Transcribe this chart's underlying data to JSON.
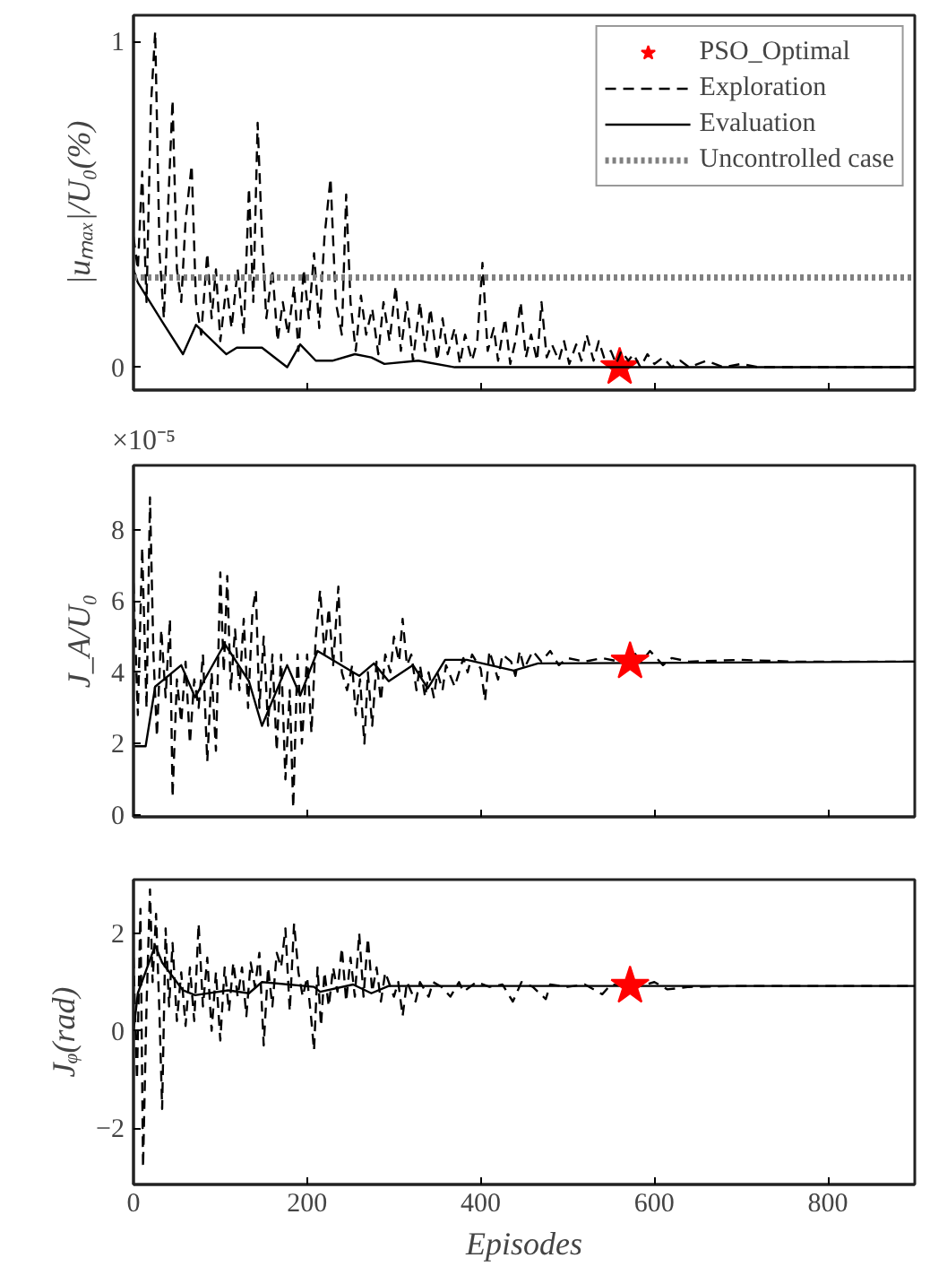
{
  "chart_data": [
    {
      "type": "line",
      "ylabel": "|uₘₐₓ|/U₀(%)",
      "xlim": [
        0,
        900
      ],
      "xticks": [
        0,
        200,
        400,
        600,
        800
      ],
      "ylim": [
        -0.07,
        1.08
      ],
      "yticks": [
        0,
        1
      ],
      "tick_labels": "y",
      "grid": false,
      "legend": "top right",
      "series": [
        {
          "name": "PSO_Optimal",
          "type": "scatter",
          "marker": "star",
          "color": "#ff0000",
          "x": [
            560
          ],
          "values": [
            0
          ]
        },
        {
          "name": "Exploration",
          "type": "line",
          "line_style": "dashed",
          "color": "#000000",
          "x": [
            0,
            5,
            10,
            15,
            20,
            25,
            30,
            35,
            40,
            45,
            50,
            55,
            60,
            67,
            72,
            78,
            85,
            90,
            95,
            100,
            107,
            113,
            120,
            127,
            133,
            138,
            143,
            148,
            153,
            160,
            166,
            172,
            178,
            185,
            190,
            196,
            202,
            208,
            214,
            220,
            227,
            233,
            240,
            245,
            250,
            256,
            262,
            268,
            275,
            282,
            288,
            295,
            302,
            308,
            315,
            322,
            330,
            336,
            342,
            350,
            356,
            362,
            370,
            376,
            382,
            390,
            396,
            402,
            408,
            415,
            420,
            428,
            434,
            440,
            446,
            452,
            458,
            465,
            470,
            476,
            482,
            490,
            496,
            502,
            510,
            516,
            522,
            530,
            536,
            542,
            550,
            556,
            562,
            570,
            576,
            584,
            592,
            600,
            610,
            620,
            630,
            640,
            660,
            680,
            700,
            720,
            760,
            800,
            850,
            900
          ],
          "values": [
            0.4,
            0.3,
            0.6,
            0.2,
            0.8,
            1.03,
            0.35,
            0.15,
            0.5,
            0.82,
            0.3,
            0.2,
            0.45,
            0.62,
            0.2,
            0.1,
            0.35,
            0.15,
            0.3,
            0.08,
            0.25,
            0.12,
            0.3,
            0.1,
            0.55,
            0.2,
            0.75,
            0.4,
            0.15,
            0.3,
            0.08,
            0.2,
            0.1,
            0.25,
            0.05,
            0.3,
            0.15,
            0.35,
            0.12,
            0.4,
            0.58,
            0.2,
            0.1,
            0.53,
            0.2,
            0.05,
            0.22,
            0.1,
            0.18,
            0.04,
            0.2,
            0.08,
            0.25,
            0.05,
            0.2,
            0.02,
            0.2,
            0.05,
            0.18,
            0.02,
            0.15,
            0.04,
            0.12,
            0.01,
            0.1,
            0.02,
            0.08,
            0.32,
            0.05,
            0.12,
            0.02,
            0.15,
            0.01,
            0.08,
            0.2,
            0.03,
            0.1,
            0.02,
            0.2,
            0.03,
            0.07,
            0.02,
            0.08,
            0.01,
            0.07,
            0.02,
            0.1,
            0.02,
            0.08,
            0.03,
            0.05,
            0.01,
            0.05,
            0.02,
            0.04,
            0.0,
            0.04,
            0.01,
            0.03,
            0.0,
            0.02,
            0.0,
            0.02,
            0.0,
            0.01,
            0.0,
            0.0,
            0.0,
            0.0,
            0.0
          ]
        },
        {
          "name": "Evaluation",
          "type": "line",
          "line_style": "solid",
          "color": "#000000",
          "x": [
            0,
            5,
            33,
            57,
            72,
            107,
            119,
            148,
            177,
            192,
            210,
            229,
            255,
            274,
            289,
            328,
            370,
            900
          ],
          "values": [
            0.3,
            0.26,
            0.14,
            0.04,
            0.13,
            0.04,
            0.06,
            0.06,
            0.0,
            0.07,
            0.02,
            0.02,
            0.04,
            0.03,
            0.01,
            0.02,
            0.0,
            0.0
          ]
        }
      ],
      "ref_lines": [
        {
          "axis": "y",
          "value": 0.275,
          "label": "Uncontrolled case",
          "color": "#808080",
          "line_style": "dotted"
        }
      ]
    },
    {
      "type": "line",
      "ylabel": "J_A/U₀",
      "annotations": [
        "×10⁻⁵"
      ],
      "xlim": [
        0,
        900
      ],
      "xticks": [
        0,
        200,
        400,
        600,
        800
      ],
      "ylim": [
        -0.05,
        9.8
      ],
      "yticks": [
        0,
        2,
        4,
        6,
        8
      ],
      "tick_labels": "y",
      "grid": false,
      "series": [
        {
          "type": "line",
          "line_style": "dashed",
          "color": "#000000",
          "x": [
            0,
            5,
            10,
            15,
            19,
            23,
            27,
            32,
            37,
            42,
            45,
            50,
            55,
            60,
            65,
            70,
            75,
            80,
            85,
            90,
            95,
            100,
            104,
            108,
            112,
            117,
            122,
            127,
            132,
            137,
            141,
            145,
            150,
            155,
            160,
            165,
            170,
            175,
            180,
            184,
            189,
            194,
            200,
            205,
            210,
            215,
            220,
            225,
            230,
            236,
            240,
            246,
            252,
            256,
            261,
            266,
            270,
            275,
            280,
            285,
            290,
            296,
            300,
            306,
            310,
            315,
            320,
            326,
            330,
            336,
            340,
            346,
            350,
            356,
            360,
            370,
            380,
            385,
            390,
            400,
            405,
            410,
            420,
            425,
            435,
            440,
            445,
            450,
            460,
            470,
            480,
            490,
            500,
            520,
            540,
            560,
            575,
            585,
            595,
            610,
            620,
            640,
            700,
            760,
            900
          ],
          "values": [
            6.5,
            2.8,
            7.5,
            3.0,
            8.9,
            4.5,
            2.2,
            5.2,
            3.3,
            5.5,
            0.5,
            3.8,
            2.6,
            4.3,
            2.0,
            3.8,
            3.0,
            4.5,
            1.5,
            4.0,
            1.8,
            6.8,
            4.0,
            6.7,
            3.5,
            5.2,
            3.5,
            5.5,
            3.0,
            5.7,
            6.3,
            3.0,
            5.0,
            2.5,
            4.5,
            1.8,
            4.5,
            1.0,
            3.5,
            0.2,
            4.5,
            2.0,
            4.5,
            2.3,
            5.0,
            6.3,
            4.5,
            5.8,
            4.2,
            6.4,
            4.0,
            3.5,
            4.2,
            2.8,
            3.8,
            2.0,
            4.0,
            2.5,
            4.3,
            3.2,
            4.5,
            4.0,
            5.0,
            4.3,
            5.5,
            4.2,
            4.5,
            3.5,
            4.2,
            3.3,
            4.0,
            3.3,
            4.0,
            3.5,
            4.2,
            3.6,
            4.4,
            4.0,
            4.5,
            4.1,
            3.2,
            4.6,
            3.8,
            4.5,
            4.3,
            3.9,
            4.6,
            4.1,
            4.6,
            4.3,
            4.6,
            4.2,
            4.4,
            4.3,
            4.4,
            4.3,
            4.6,
            4.3,
            4.6,
            4.2,
            4.4,
            4.3,
            4.35,
            4.3,
            4.3
          ]
        },
        {
          "type": "line",
          "line_style": "solid",
          "color": "#000000",
          "x": [
            0,
            14,
            25,
            55,
            71,
            82,
            105,
            133,
            148,
            177,
            192,
            212,
            260,
            277,
            294,
            322,
            339,
            359,
            384,
            438,
            466,
            900
          ],
          "values": [
            1.93,
            1.93,
            3.6,
            4.2,
            3.3,
            3.8,
            4.8,
            3.75,
            2.5,
            4.2,
            3.35,
            4.6,
            3.9,
            4.25,
            3.75,
            4.2,
            3.55,
            4.35,
            4.35,
            4.05,
            4.25,
            4.3
          ]
        },
        {
          "type": "scatter",
          "marker": "star",
          "color": "#ff0000",
          "x": [
            572
          ],
          "values": [
            4.3
          ]
        }
      ]
    },
    {
      "type": "line",
      "ylabel": "Jᵩ(rad)",
      "xlabel": "Episodes",
      "xlim": [
        0,
        900
      ],
      "xticks": [
        0,
        200,
        400,
        600,
        800
      ],
      "ylim": [
        -3.15,
        3.1
      ],
      "yticks": [
        -2,
        0,
        2
      ],
      "grid": false,
      "series": [
        {
          "type": "line",
          "line_style": "dashed",
          "color": "#000000",
          "x": [
            0,
            4,
            8,
            11,
            15,
            19,
            22,
            26,
            30,
            33,
            37,
            41,
            45,
            50,
            55,
            60,
            65,
            70,
            75,
            80,
            85,
            90,
            95,
            100,
            105,
            110,
            115,
            120,
            125,
            130,
            135,
            140,
            145,
            150,
            155,
            160,
            165,
            170,
            175,
            180,
            185,
            190,
            195,
            200,
            205,
            208,
            212,
            216,
            220,
            225,
            230,
            235,
            240,
            245,
            250,
            255,
            260,
            265,
            270,
            275,
            280,
            285,
            290,
            300,
            305,
            310,
            315,
            325,
            330,
            340,
            345,
            355,
            365,
            375,
            380,
            395,
            410,
            425,
            437,
            447,
            460,
            475,
            480,
            500,
            520,
            540,
            550,
            580,
            600,
            615,
            640,
            700,
            900
          ],
          "values": [
            1.5,
            -1.0,
            2.5,
            -2.8,
            0.5,
            2.9,
            1.0,
            2.4,
            0.3,
            -1.6,
            2.1,
            0.5,
            1.8,
            0.2,
            1.2,
            0.1,
            1.3,
            0.2,
            2.2,
            0.5,
            1.5,
            0.0,
            1.2,
            -0.2,
            1.3,
            0.4,
            1.4,
            0.7,
            1.3,
            0.3,
            1.4,
            0.9,
            1.6,
            -0.3,
            1.3,
            0.5,
            1.6,
            1.3,
            2.1,
            0.4,
            2.2,
            1.2,
            0.7,
            1.1,
            0.2,
            -0.4,
            1.3,
            0.1,
            1.2,
            0.5,
            1.3,
            0.8,
            1.7,
            0.6,
            1.5,
            0.7,
            2.0,
            0.7,
            1.9,
            0.8,
            1.3,
            0.6,
            1.2,
            0.7,
            1.0,
            0.3,
            1.0,
            0.6,
            1.0,
            0.7,
            1.0,
            0.9,
            0.7,
            1.0,
            0.8,
            1.0,
            0.9,
            0.95,
            0.6,
            1.0,
            0.9,
            0.65,
            0.95,
            0.9,
            0.95,
            0.75,
            0.95,
            0.9,
            1.0,
            0.85,
            0.9,
            0.92,
            0.92
          ]
        },
        {
          "type": "line",
          "line_style": "solid",
          "color": "#000000",
          "x": [
            0,
            5,
            25,
            33,
            57,
            71,
            109,
            133,
            148,
            208,
            215,
            253,
            274,
            294,
            330,
            900
          ],
          "values": [
            0.0,
            0.77,
            1.75,
            1.4,
            0.83,
            0.73,
            0.83,
            0.77,
            1.0,
            0.9,
            0.8,
            0.95,
            0.77,
            0.92,
            0.92,
            0.92
          ]
        },
        {
          "type": "scatter",
          "marker": "star",
          "color": "#ff0000",
          "x": [
            572
          ],
          "values": [
            0.92
          ]
        }
      ]
    }
  ]
}
